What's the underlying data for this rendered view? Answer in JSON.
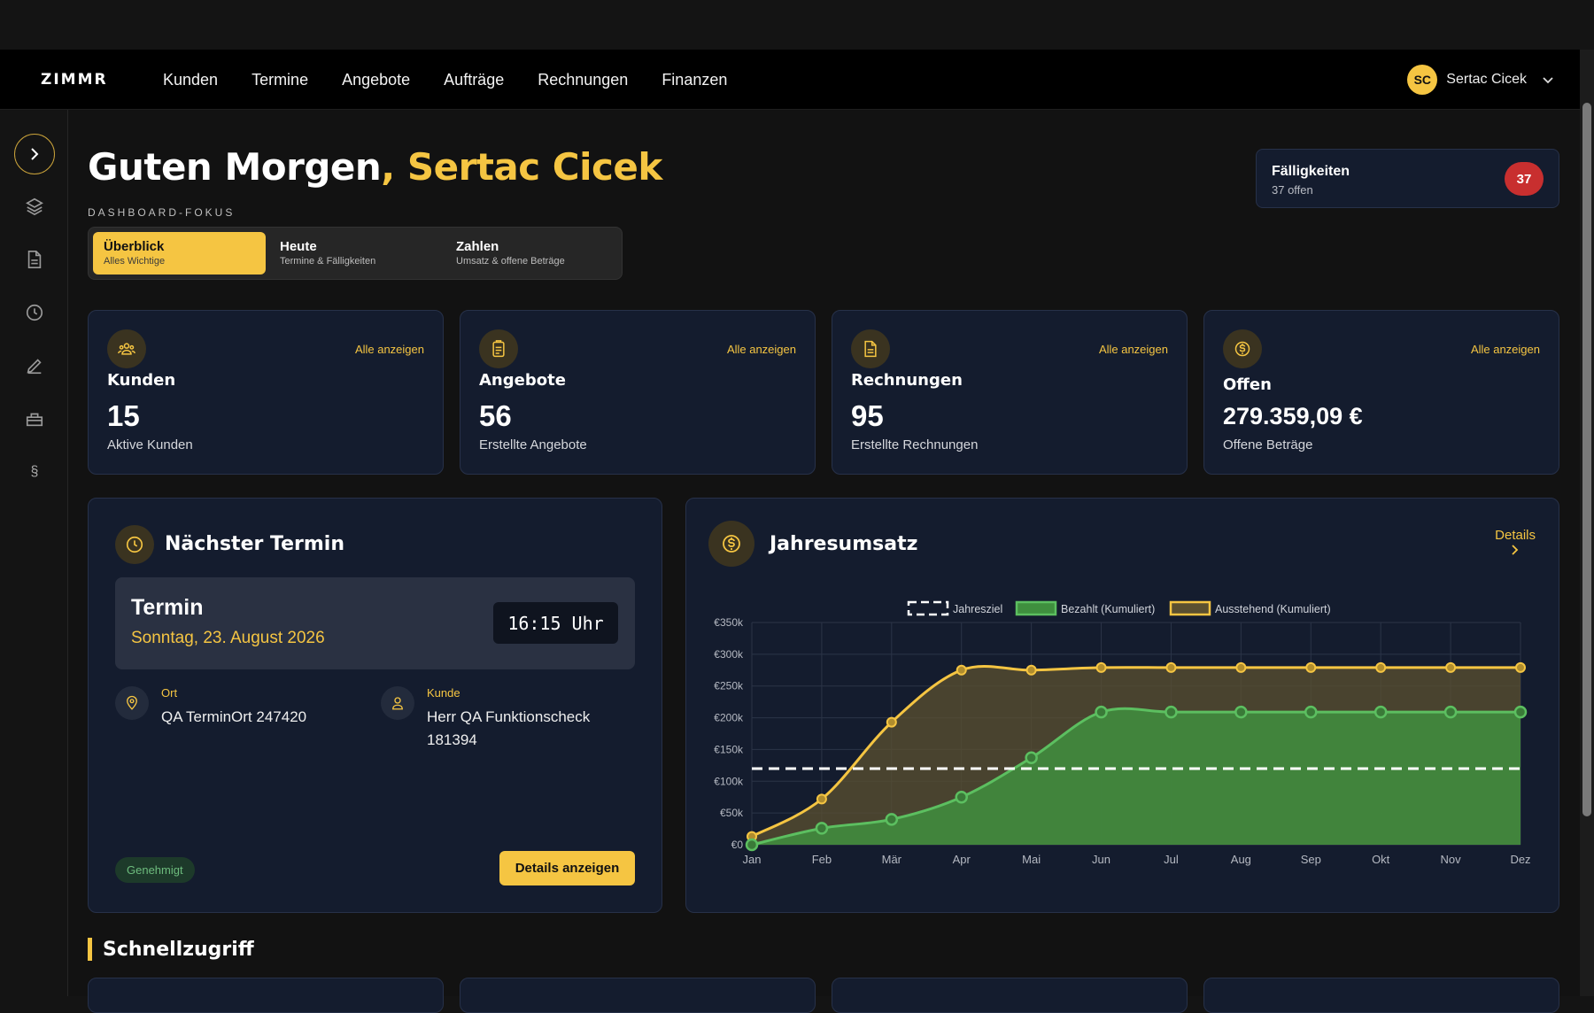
{
  "app": {
    "logo": "ZIMMR"
  },
  "nav": [
    "Kunden",
    "Termine",
    "Angebote",
    "Aufträge",
    "Rechnungen",
    "Finanzen"
  ],
  "user": {
    "initials": "SC",
    "name": "Sertac Cicek"
  },
  "greeting": {
    "prefix": "Guten Morgen",
    "comma": ",",
    "name": "Sertac Cicek"
  },
  "focus": {
    "label": "DASHBOARD-FOKUS",
    "tabs": [
      {
        "title": "Überblick",
        "subtitle": "Alles Wichtige",
        "active": true
      },
      {
        "title": "Heute",
        "subtitle": "Termine & Fälligkeiten",
        "active": false
      },
      {
        "title": "Zahlen",
        "subtitle": "Umsatz & offene Beträge",
        "active": false
      }
    ]
  },
  "due": {
    "title": "Fälligkeiten",
    "subtitle": "37 offen",
    "count": "37"
  },
  "stats": [
    {
      "title": "Kunden",
      "value": "15",
      "sub": "Aktive Kunden",
      "link": "Alle anzeigen",
      "icon": "users-icon"
    },
    {
      "title": "Angebote",
      "value": "56",
      "sub": "Erstellte Angebote",
      "link": "Alle anzeigen",
      "icon": "clipboard-icon"
    },
    {
      "title": "Rechnungen",
      "value": "95",
      "sub": "Erstellte Rechnungen",
      "link": "Alle anzeigen",
      "icon": "document-icon"
    },
    {
      "title": "Offen",
      "value": "279.359,09 €",
      "sub": "Offene Beträge",
      "link": "Alle anzeigen",
      "icon": "dollar-icon"
    }
  ],
  "appointment": {
    "heading": "Nächster Termin",
    "title": "Termin",
    "date": "Sonntag, 23. August 2026",
    "time": "16:15 Uhr",
    "place_label": "Ort",
    "place": "QA TerminOrt 247420",
    "customer_label": "Kunde",
    "customer_line1": "Herr QA Funktionscheck",
    "customer_line2": "181394",
    "status": "Genehmigt",
    "button": "Details anzeigen"
  },
  "revenue": {
    "heading": "Jahresumsatz",
    "details": "Details",
    "details_icon": "chevron-right-icon"
  },
  "chart_data": {
    "type": "area",
    "categories": [
      "Jan",
      "Feb",
      "Mär",
      "Apr",
      "Mai",
      "Jun",
      "Jul",
      "Aug",
      "Sep",
      "Okt",
      "Nov",
      "Dez"
    ],
    "ylim": [
      0,
      350000
    ],
    "yticks": [
      "€0",
      "€50k",
      "€100k",
      "€150k",
      "€200k",
      "€250k",
      "€300k",
      "€350k"
    ],
    "grid": true,
    "legend_position": "top",
    "series": [
      {
        "name": "Jahresziel",
        "style": "dashed",
        "color": "#ffffff",
        "values": [
          120000,
          120000,
          120000,
          120000,
          120000,
          120000,
          120000,
          120000,
          120000,
          120000,
          120000,
          120000
        ]
      },
      {
        "name": "Bezahlt (Kumuliert)",
        "style": "area",
        "color": "#5cbf60",
        "values": [
          0,
          26000,
          40000,
          75000,
          137000,
          209000,
          209000,
          209000,
          209000,
          209000,
          209000,
          209000
        ]
      },
      {
        "name": "Ausstehend (Kumuliert)",
        "style": "area",
        "color": "#f5c542",
        "values": [
          13000,
          72000,
          193000,
          275000,
          275000,
          279000,
          279000,
          279000,
          279000,
          279000,
          279000,
          279000
        ]
      }
    ]
  },
  "quick": {
    "heading": "Schnellzugriff"
  },
  "colors": {
    "accent": "#f5c542",
    "card_bg": "#141c2e",
    "badge_red": "#c82f2f",
    "paid_green": "#5cbf60"
  }
}
